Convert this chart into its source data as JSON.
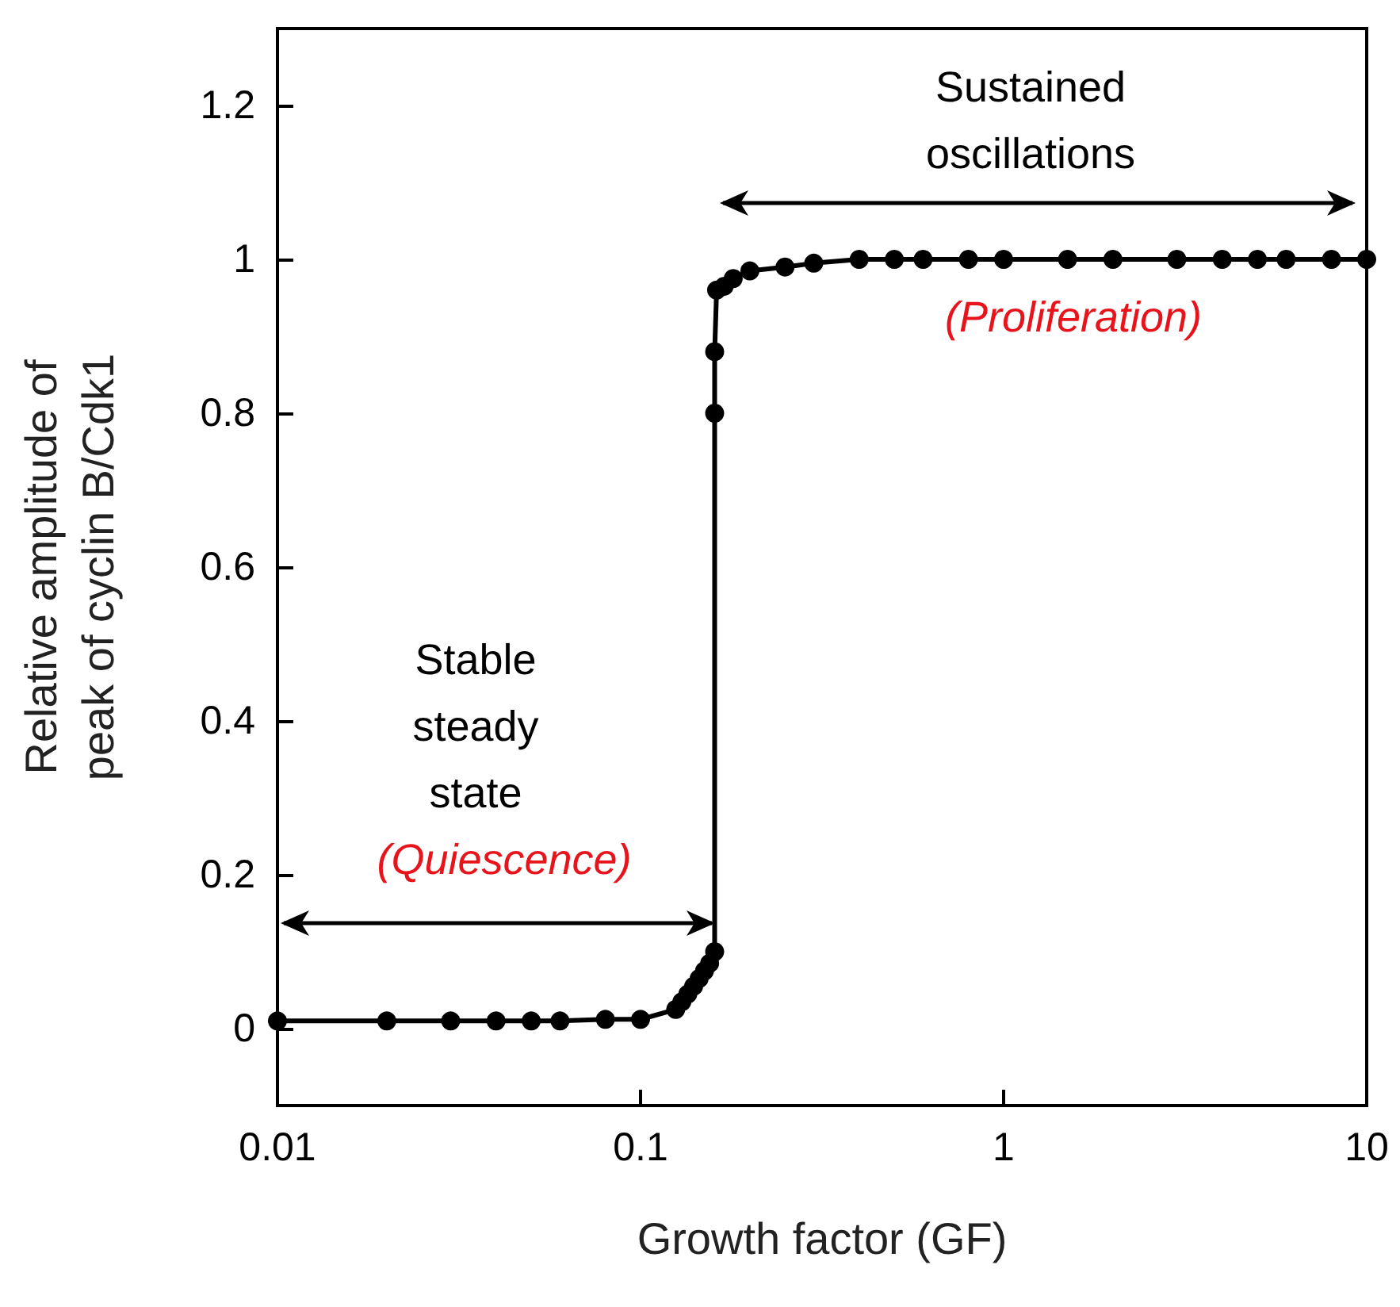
{
  "chart_data": {
    "type": "line",
    "xlabel": "Growth factor (GF)",
    "ylabel": "Relative amplitude of\npeak of cyclin B/Cdk1",
    "x": [
      0.01,
      0.02,
      0.03,
      0.04,
      0.05,
      0.06,
      0.08,
      0.1,
      0.125,
      0.13,
      0.135,
      0.14,
      0.145,
      0.15,
      0.155,
      0.16,
      0.16,
      0.16,
      0.162,
      0.17,
      0.18,
      0.2,
      0.25,
      0.3,
      0.4,
      0.5,
      0.6,
      0.8,
      1,
      1.5,
      2,
      3,
      4,
      5,
      6,
      8,
      10
    ],
    "series": [
      {
        "color": "#000000",
        "values": [
          0.01,
          0.01,
          0.01,
          0.01,
          0.01,
          0.01,
          0.012,
          0.012,
          0.025,
          0.035,
          0.045,
          0.055,
          0.065,
          0.075,
          0.085,
          0.1,
          0.8,
          0.88,
          0.96,
          0.965,
          0.975,
          0.985,
          0.99,
          0.995,
          1,
          1,
          1,
          1,
          1,
          1,
          1,
          1,
          1,
          1,
          1,
          1,
          1
        ]
      }
    ],
    "log": "x",
    "xlim": [
      0.01,
      10
    ],
    "xticks": [
      0.01,
      0.1,
      1,
      10
    ],
    "ylim": [
      -0.1,
      1.3
    ],
    "yticks": [
      0,
      0.2,
      0.4,
      0.6,
      0.8,
      1,
      1.2
    ],
    "grid": false,
    "marker": "circle",
    "line_style": "solid",
    "annotations": [
      "Stable\nsteady\nstate",
      "Sustained\noscillations",
      "(Quiescence)",
      "(Proliferation)"
    ]
  }
}
